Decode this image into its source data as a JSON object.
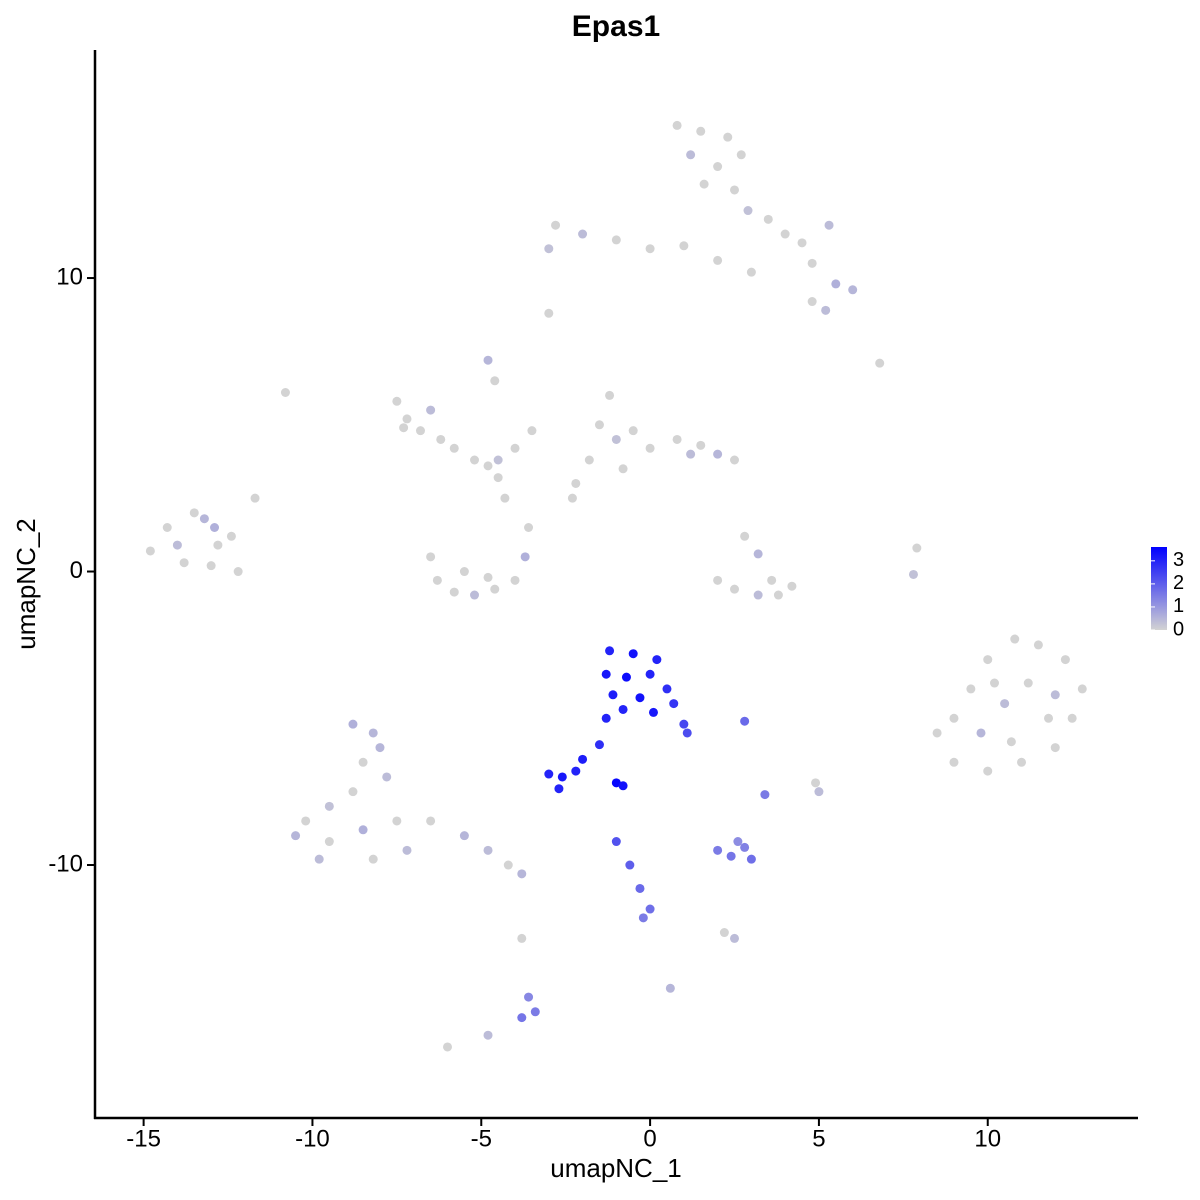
{
  "chart_data": {
    "type": "scatter",
    "title": "Epas1",
    "x_label": "umapNC_1",
    "y_label": "umapNC_2",
    "x": [
      -14.8,
      -14.3,
      -13.8,
      -13.2,
      -12.8,
      -12.4,
      -13.5,
      -14.0,
      -13.0,
      -12.2,
      -11.7,
      -12.9,
      -7.5,
      -7.2,
      -6.8,
      -6.2,
      -5.8,
      -5.2,
      -4.8,
      -4.5,
      -6.5,
      -7.3,
      -4.0,
      -3.5,
      -4.6,
      -4.8,
      -10.8,
      -6.5,
      -6.3,
      -5.8,
      -5.2,
      -4.6,
      -4.0,
      -3.7,
      -3.6,
      -4.3,
      -4.5,
      -5.5,
      -4.8,
      -1.2,
      -1.5,
      -1.0,
      -0.5,
      0,
      0.8,
      1.5,
      2.0,
      2.5,
      1.2,
      -1.8,
      -2.2,
      -2.3,
      -0.8,
      0.8,
      1.5,
      2.3,
      1.2,
      2.0,
      2.7,
      1.6,
      2.5,
      2.9,
      3.5,
      4.0,
      4.5,
      5.3,
      4.8,
      5.5,
      6.0,
      4.8,
      5.2,
      -2.8,
      -3.0,
      -2.0,
      -1.0,
      0,
      1.0,
      2.0,
      3.0,
      -3.0,
      6.8,
      2.8,
      3.2,
      3.6,
      3.2,
      2.5,
      2.0,
      4.2,
      3.8,
      7.9,
      7.8,
      9,
      9.5,
      10,
      10.8,
      11.5,
      12.3,
      12.8,
      12.5,
      12,
      11,
      10,
      9,
      8.5,
      10.5,
      11.2,
      9.8,
      11.8,
      10.2,
      12,
      10.7,
      -8.8,
      -8.2,
      -8.5,
      -7.8,
      -8.8,
      -9.5,
      -10.2,
      -10.5,
      -9.5,
      -8.5,
      -7.5,
      -7.2,
      -8.2,
      -9.8,
      -6.5,
      -5.5,
      -4.8,
      -4.2,
      -3.8,
      -8,
      -1.0,
      -0.6,
      -0.3,
      0,
      -0.2,
      2.0,
      2.4,
      2.8,
      3.0,
      2.6,
      2.5,
      2.2,
      3.4,
      2.8,
      5.0,
      4.9,
      -3.6,
      -3.4,
      -3.8,
      -3.8,
      -6,
      -4.8,
      0.6,
      -1.2,
      -0.5,
      0.2,
      -1.3,
      -0.7,
      0,
      -1.1,
      -0.3,
      0.5,
      -0.8,
      0.1,
      0.7,
      1.0,
      1.1,
      -1.3,
      -3,
      -2.6,
      -2.2,
      -2.0,
      -1.5,
      -2.7,
      -1.0,
      -0.8
    ],
    "y": [
      0.7,
      1.5,
      0.3,
      1.8,
      0.9,
      1.2,
      2.0,
      0.9,
      0.2,
      0.0,
      2.5,
      1.5,
      5.8,
      5.2,
      4.8,
      4.5,
      4.2,
      3.8,
      3.6,
      3.8,
      5.5,
      4.9,
      4.2,
      4.8,
      6.5,
      7.2,
      6.1,
      0.5,
      -0.3,
      -0.7,
      -0.8,
      -0.6,
      -0.3,
      0.5,
      1.5,
      2.5,
      3.2,
      0.0,
      -0.2,
      6.0,
      5.0,
      4.5,
      4.8,
      4.2,
      4.5,
      4.3,
      4.0,
      3.8,
      4.0,
      3.8,
      3.0,
      2.5,
      3.5,
      15.2,
      15.0,
      14.8,
      14.2,
      13.8,
      14.2,
      13.2,
      13.0,
      12.3,
      12.0,
      11.5,
      11.2,
      11.8,
      10.5,
      9.8,
      9.6,
      9.2,
      8.9,
      11.8,
      11.0,
      11.5,
      11.3,
      11.0,
      11.1,
      10.6,
      10.2,
      8.8,
      7.1,
      1.2,
      0.6,
      -0.3,
      -0.8,
      -0.6,
      -0.3,
      -0.5,
      -0.8,
      0.8,
      -0.1,
      -5,
      -4,
      -3,
      -2.3,
      -2.5,
      -3,
      -4,
      -5,
      -6,
      -6.5,
      -6.8,
      -6.5,
      -5.5,
      -4.5,
      -3.8,
      -5.5,
      -5,
      -3.8,
      -4.2,
      -5.8,
      -5.2,
      -5.5,
      -6.5,
      -7,
      -7.5,
      -8,
      -8.5,
      -9,
      -9.2,
      -8.8,
      -8.5,
      -9.5,
      -9.8,
      -9.8,
      -8.5,
      -9,
      -9.5,
      -10,
      -10.3,
      -6,
      -9.2,
      -10.0,
      -10.8,
      -11.5,
      -11.8,
      -9.5,
      -9.7,
      -9.4,
      -9.8,
      -9.2,
      -12.5,
      -12.3,
      -7.6,
      -5.1,
      -7.5,
      -7.2,
      -14.5,
      -15,
      -15.2,
      -12.5,
      -16.2,
      -15.8,
      -14.2,
      -2.7,
      -2.8,
      -3.0,
      -3.5,
      -3.6,
      -3.5,
      -4.2,
      -4.3,
      -4.0,
      -4.7,
      -4.8,
      -4.5,
      -5.2,
      -5.5,
      -5.0,
      -6.9,
      -7.0,
      -6.8,
      -6.4,
      -5.9,
      -7.4,
      -7.2,
      -7.3
    ],
    "values": [
      0,
      0,
      0,
      0.5,
      0,
      0,
      0,
      0.4,
      0,
      0,
      0,
      0.6,
      0,
      0,
      0,
      0,
      0,
      0,
      0,
      0.3,
      0.4,
      0,
      0,
      0,
      0,
      0.5,
      0,
      0,
      0,
      0,
      0.4,
      0,
      0,
      0.6,
      0,
      0,
      0,
      0,
      0,
      0,
      0,
      0.3,
      0,
      0,
      0,
      0,
      0.5,
      0,
      0.4,
      0,
      0,
      0,
      0,
      0,
      0,
      0,
      0.4,
      0,
      0,
      0,
      0,
      0.3,
      0,
      0,
      0,
      0.4,
      0,
      0.6,
      0.5,
      0,
      0.4,
      0,
      0.3,
      0.4,
      0,
      0,
      0,
      0,
      0,
      0,
      0,
      0,
      0.5,
      0,
      0.4,
      0,
      0,
      0,
      0,
      0,
      0.3,
      0,
      0,
      0,
      0,
      0,
      0,
      0,
      0,
      0,
      0,
      0,
      0,
      0,
      0.4,
      0,
      0.5,
      0,
      0,
      0.4,
      0,
      0.6,
      0.5,
      0,
      0.4,
      0,
      0.3,
      0,
      0.5,
      0,
      0.6,
      0,
      0.4,
      0,
      0.4,
      0,
      0.5,
      0.4,
      0,
      0.5,
      0.5,
      2.2,
      2,
      1.8,
      1.7,
      1.5,
      1.5,
      1.6,
      1.4,
      1.7,
      1.2,
      0.4,
      0,
      1.5,
      1.8,
      0.4,
      0,
      1.3,
      1.5,
      1.6,
      0,
      0,
      0.4,
      0.5,
      3,
      3.3,
      3,
      3.2,
      3.4,
      3,
      3.1,
      3.3,
      2.8,
      3,
      3.2,
      2.7,
      2.4,
      2.3,
      3,
      3,
      3.2,
      3,
      3.1,
      2.8,
      3,
      3.5,
      3.3
    ],
    "xlim": [
      -16.44,
      14.45
    ],
    "ylim": [
      -18.62,
      17.77
    ],
    "xticks": [
      -15,
      -10,
      -5,
      0,
      5,
      10
    ],
    "yticks": [
      -10,
      0,
      10
    ],
    "color_low": "#d3d3d3",
    "color_high": "#0000ff",
    "color_lim": [
      0,
      3.6
    ],
    "color_ticks": [
      0,
      1,
      2,
      3
    ]
  }
}
